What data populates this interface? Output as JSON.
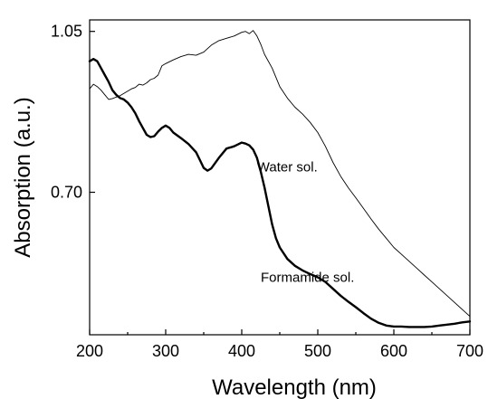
{
  "chart_data": {
    "type": "line",
    "xlabel": "Wavelength (nm)",
    "ylabel": "Absorption (a.u.)",
    "xlim": [
      200,
      700
    ],
    "ylim": [
      0.39,
      1.075
    ],
    "xticks": [
      200,
      300,
      400,
      500,
      600,
      700
    ],
    "xtick_labels": [
      "200",
      "300",
      "400",
      "500",
      "600",
      "700"
    ],
    "yticks": [
      1.05,
      0.7
    ],
    "ytick_labels": [
      "1.05",
      "0.70"
    ],
    "grid": false,
    "legend": "none",
    "series": [
      {
        "name": "Water sol.",
        "color": "#000000",
        "x": [
          200,
          205,
          210,
          215,
          220,
          225,
          230,
          235,
          240,
          245,
          250,
          255,
          260,
          265,
          270,
          275,
          280,
          285,
          290,
          295,
          300,
          310,
          320,
          330,
          340,
          350,
          360,
          370,
          380,
          390,
          400,
          405,
          410,
          415,
          420,
          425,
          430,
          440,
          450,
          460,
          470,
          480,
          490,
          500,
          510,
          520,
          530,
          540,
          550,
          560,
          570,
          580,
          590,
          600,
          610,
          620,
          630,
          640,
          650,
          660,
          670,
          680,
          690,
          700
        ],
        "y": [
          0.925,
          0.935,
          0.93,
          0.922,
          0.912,
          0.902,
          0.904,
          0.907,
          0.91,
          0.915,
          0.92,
          0.925,
          0.928,
          0.935,
          0.933,
          0.938,
          0.945,
          0.948,
          0.955,
          0.975,
          0.98,
          0.988,
          0.995,
          1.0,
          0.998,
          1.005,
          1.02,
          1.03,
          1.035,
          1.04,
          1.048,
          1.05,
          1.045,
          1.052,
          1.04,
          1.022,
          1.0,
          0.97,
          0.93,
          0.905,
          0.885,
          0.87,
          0.852,
          0.83,
          0.8,
          0.765,
          0.735,
          0.71,
          0.688,
          0.665,
          0.642,
          0.62,
          0.6,
          0.58,
          0.565,
          0.55,
          0.535,
          0.52,
          0.505,
          0.49,
          0.475,
          0.46,
          0.445,
          0.43
        ]
      },
      {
        "name": "Formamide sol.",
        "color": "#000000",
        "x": [
          200,
          205,
          210,
          215,
          220,
          225,
          230,
          235,
          240,
          245,
          250,
          255,
          260,
          265,
          270,
          275,
          280,
          285,
          290,
          295,
          300,
          305,
          310,
          320,
          330,
          340,
          345,
          350,
          355,
          360,
          370,
          380,
          390,
          400,
          405,
          410,
          415,
          420,
          425,
          430,
          435,
          440,
          445,
          450,
          460,
          470,
          480,
          490,
          500,
          510,
          520,
          530,
          540,
          550,
          560,
          570,
          580,
          590,
          600,
          610,
          620,
          630,
          640,
          650,
          660,
          670,
          680,
          690,
          700
        ],
        "y": [
          0.985,
          0.99,
          0.985,
          0.97,
          0.955,
          0.94,
          0.922,
          0.912,
          0.905,
          0.902,
          0.895,
          0.885,
          0.872,
          0.855,
          0.84,
          0.825,
          0.82,
          0.822,
          0.832,
          0.84,
          0.845,
          0.84,
          0.83,
          0.818,
          0.805,
          0.787,
          0.77,
          0.753,
          0.747,
          0.752,
          0.775,
          0.795,
          0.8,
          0.808,
          0.806,
          0.802,
          0.793,
          0.775,
          0.745,
          0.71,
          0.67,
          0.63,
          0.6,
          0.58,
          0.555,
          0.54,
          0.53,
          0.522,
          0.515,
          0.505,
          0.49,
          0.475,
          0.462,
          0.45,
          0.437,
          0.425,
          0.416,
          0.41,
          0.408,
          0.408,
          0.407,
          0.407,
          0.407,
          0.408,
          0.41,
          0.412,
          0.414,
          0.417,
          0.419
        ]
      }
    ],
    "annotations": [
      {
        "text": "Water sol.",
        "x": 420,
        "y": 0.745
      },
      {
        "text": "Formamide sol.",
        "x": 425,
        "y": 0.505
      }
    ]
  }
}
